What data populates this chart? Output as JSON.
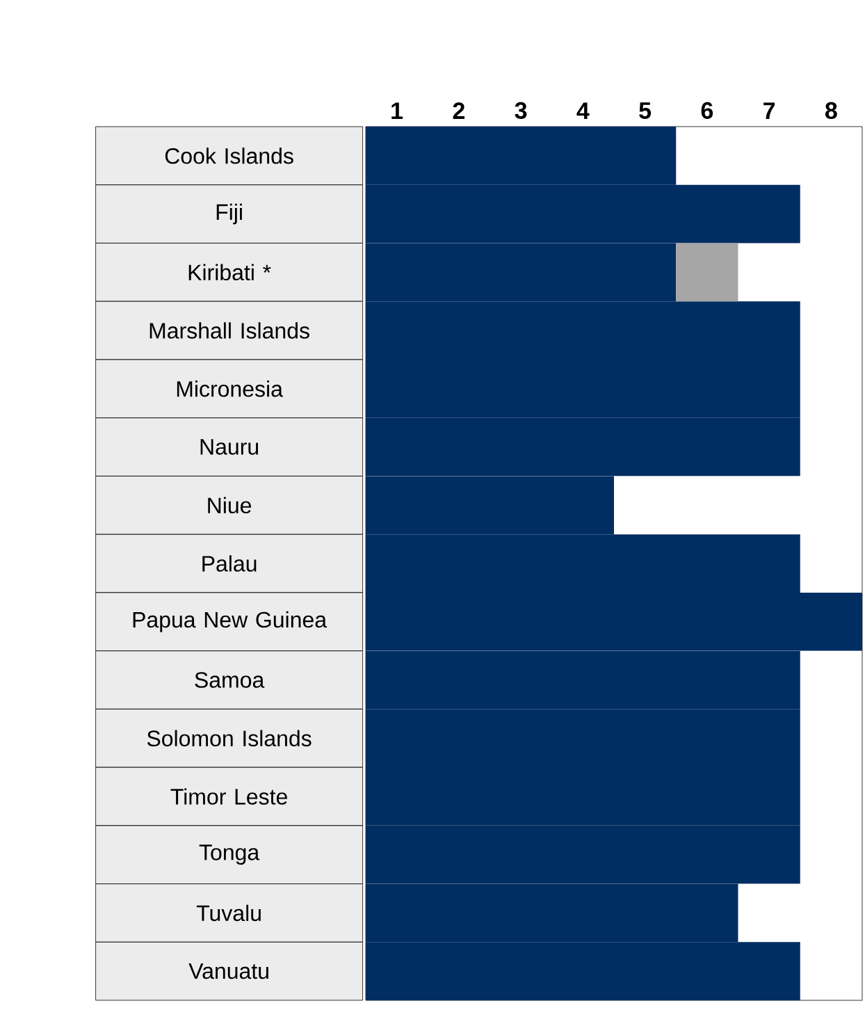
{
  "chart_data": {
    "type": "bar",
    "orientation": "horizontal",
    "stacked": true,
    "categories": [
      "Cook Islands",
      "Fiji",
      "Kiribati *",
      "Marshall Islands",
      "Micronesia",
      "Nauru",
      "Niue",
      "Palau",
      "Papua New Guinea",
      "Samoa",
      "Solomon Islands",
      "Timor Leste",
      "Tonga",
      "Tuvalu",
      "Vanuatu"
    ],
    "series": [
      {
        "color": "#002d62",
        "values": [
          5,
          7,
          5,
          7,
          7,
          7,
          4,
          7,
          8,
          7,
          7,
          7,
          7,
          6,
          7
        ]
      },
      {
        "color": "#a6a6a6",
        "values": [
          null,
          null,
          1,
          null,
          null,
          null,
          null,
          null,
          null,
          null,
          null,
          null,
          null,
          null,
          null
        ]
      }
    ],
    "xlim": [
      0,
      8
    ],
    "xticks": [
      {
        "value": 0.5,
        "label": "1"
      },
      {
        "value": 1.5,
        "label": "2"
      },
      {
        "value": 2.5,
        "label": "3"
      },
      {
        "value": 3.5,
        "label": "4"
      },
      {
        "value": 4.5,
        "label": "5"
      },
      {
        "value": 5.5,
        "label": "6"
      },
      {
        "value": 6.5,
        "label": "7"
      },
      {
        "value": 7.5,
        "label": "8"
      }
    ]
  }
}
